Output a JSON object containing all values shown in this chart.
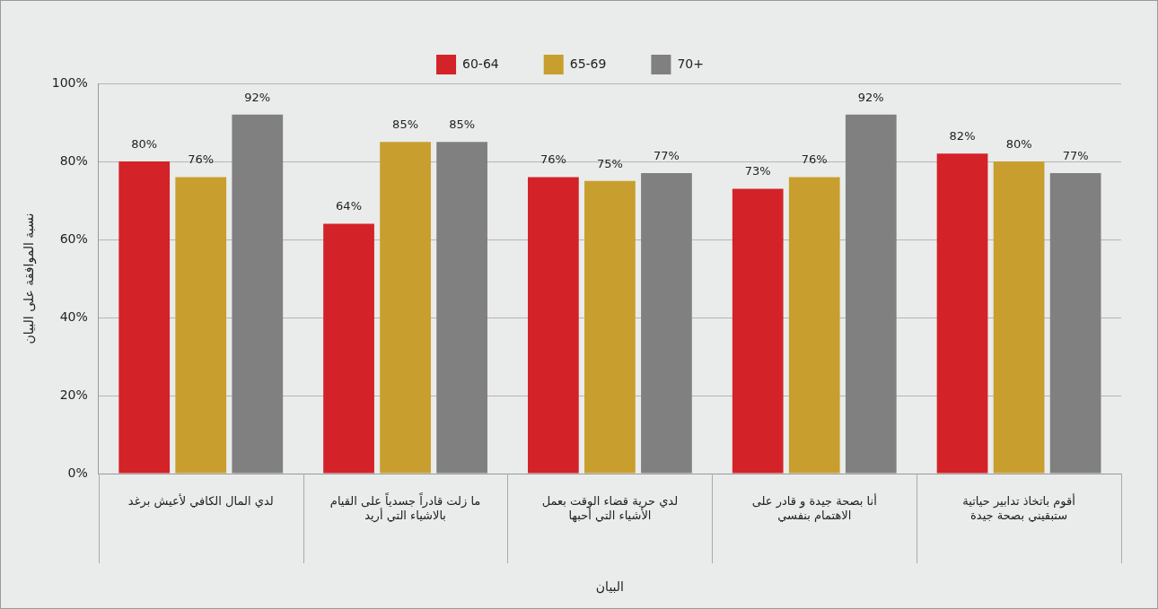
{
  "chart_data": {
    "type": "bar",
    "xlabel": "البيان",
    "ylabel": "نسبة الموافقة على البيان",
    "categories": [
      "لدي المال الكافي لأعيش برغد",
      "ما زلت قادراً جسدياً على القيام بالاشياء التي أريد",
      "لدي حرية قضاء الوقت بعمل الأشياء التي أحبها",
      "أنا بصحة جيدة و قادر على الاهتمام بنفسي",
      "أقوم باتخاذ تدابير حياتية ستبقيني بصحة جيدة"
    ],
    "series": [
      {
        "name": "60-64",
        "color": "#d42229",
        "values": [
          80,
          64,
          76,
          73,
          82
        ],
        "value_labels": [
          "80%",
          "64%",
          "76%",
          "73%",
          "82%"
        ]
      },
      {
        "name": "65-69",
        "color": "#c89e2e",
        "values": [
          76,
          85,
          75,
          76,
          80
        ],
        "value_labels": [
          "76%",
          "85%",
          "75%",
          "76%",
          "80%"
        ]
      },
      {
        "name": "70+",
        "color": "#808080",
        "values": [
          92,
          85,
          77,
          92,
          77
        ],
        "value_labels": [
          "92%",
          "85%",
          "77%",
          "92%",
          "77%"
        ]
      }
    ],
    "ylim": [
      0,
      100
    ],
    "yticks": [
      {
        "value": 0,
        "label": "0%"
      },
      {
        "value": 20,
        "label": "20%"
      },
      {
        "value": 40,
        "label": "40%"
      },
      {
        "value": 60,
        "label": "60%"
      },
      {
        "value": 80,
        "label": "80%"
      },
      {
        "value": 100,
        "label": "100%"
      }
    ],
    "grid": "y",
    "legend": "top"
  }
}
